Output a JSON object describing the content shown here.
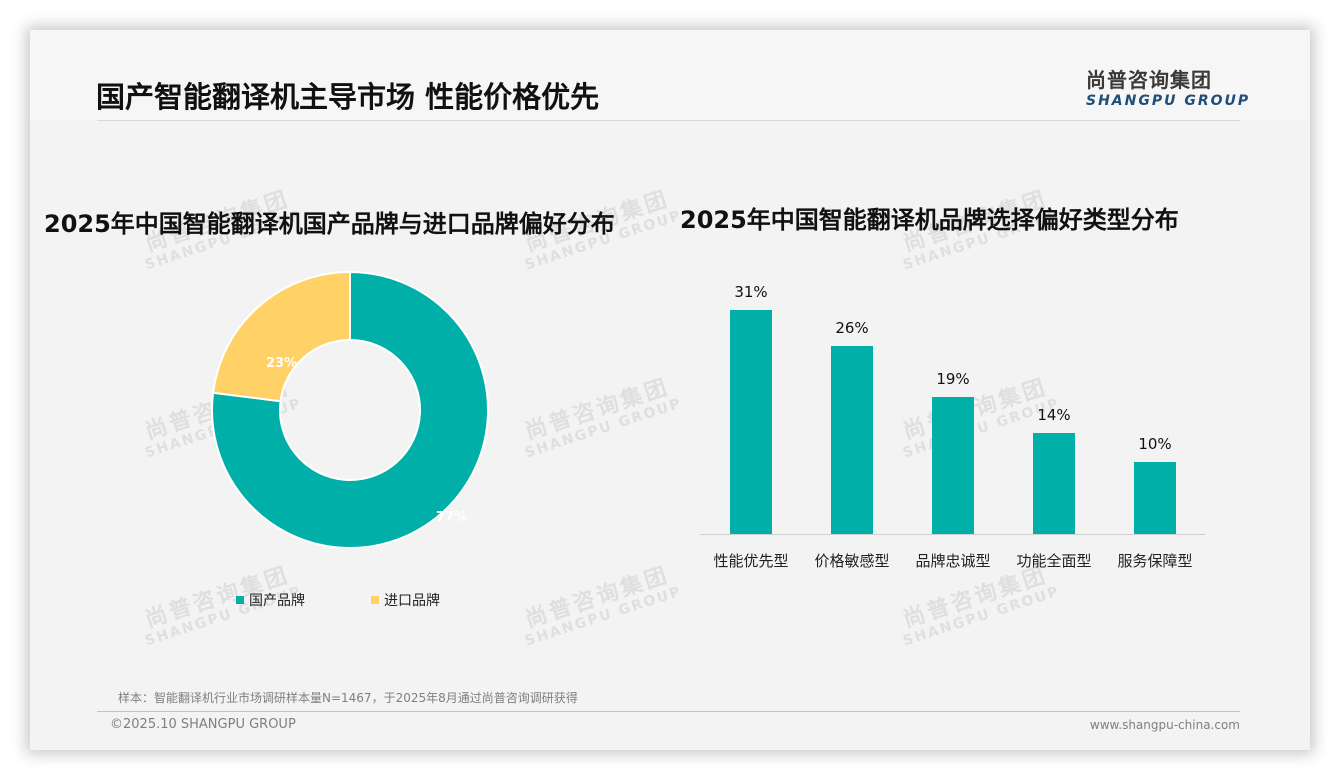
{
  "header": {
    "title": "国产智能翻译机主导市场 性能价格优先",
    "logo_cn": "尚普咨询集团",
    "logo_en": "SHANGPU GROUP"
  },
  "watermark": {
    "cn": "尚普咨询集团",
    "en": "SHANGPU GROUP"
  },
  "colors": {
    "teal": "#00b0a8",
    "yellow": "#ffd166",
    "footer_rule": "#b7c6d6"
  },
  "chart_data": [
    {
      "type": "pie",
      "variant": "donut",
      "title": "2025年中国智能翻译机国产品牌与进口品牌偏好分布",
      "categories": [
        "国产品牌",
        "进口品牌"
      ],
      "values": [
        77,
        23
      ],
      "labels": [
        "77%",
        "23%"
      ],
      "colors": [
        "#00b0a8",
        "#ffd166"
      ],
      "legend_position": "bottom"
    },
    {
      "type": "bar",
      "title": "2025年中国智能翻译机品牌选择偏好类型分布",
      "categories": [
        "性能优先型",
        "价格敏感型",
        "品牌忠诚型",
        "功能全面型",
        "服务保障型"
      ],
      "values": [
        31,
        26,
        19,
        14,
        10
      ],
      "labels": [
        "31%",
        "26%",
        "19%",
        "14%",
        "10%"
      ],
      "unit": "%",
      "xlabel": "",
      "ylabel": "",
      "grid": false,
      "color": "#00b0a8"
    }
  ],
  "footer": {
    "note": "样本：智能翻译机行业市场调研样本量N=1467，于2025年8月通过尚普咨询调研获得",
    "copyright": "©2025.10 SHANGPU GROUP",
    "website": "www.shangpu-china.com"
  }
}
